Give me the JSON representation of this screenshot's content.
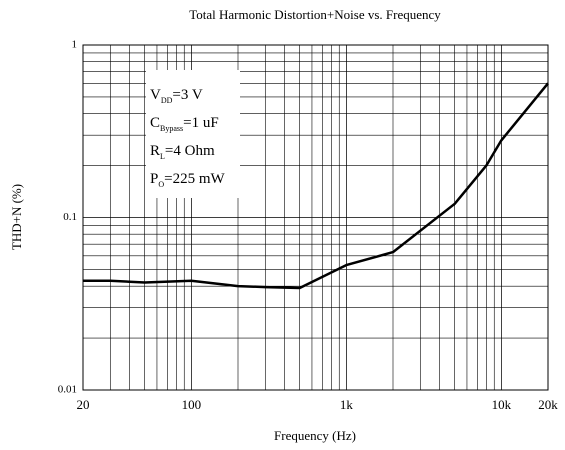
{
  "chart_data": {
    "type": "line",
    "title": "Total Harmonic Distortion+Noise vs. Frequency",
    "x_label": "Frequency (Hz)",
    "y_label": "THD+N (%)",
    "x": [
      20,
      30,
      50,
      100,
      200,
      300,
      500,
      1000,
      2000,
      5000,
      8000,
      10000,
      20000
    ],
    "series": [
      {
        "name": "THD+N",
        "color": "#000000",
        "values": [
          0.043,
          0.043,
          0.042,
          0.043,
          0.04,
          0.0395,
          0.039,
          0.053,
          0.063,
          0.12,
          0.2,
          0.28,
          0.6
        ]
      }
    ],
    "xlim": [
      20,
      20000
    ],
    "ylim": [
      0.01,
      1
    ],
    "xticks": [
      20,
      100,
      {
        "value": 1000,
        "label": "1k"
      },
      {
        "value": 10000,
        "label": "10k"
      },
      {
        "value": 20000,
        "label": "20k"
      }
    ],
    "yticks": [
      0.01,
      0.1,
      1
    ],
    "x_log": true,
    "y_log": true,
    "grid": true,
    "minor_grid": true,
    "annotations": [
      {
        "main": "V",
        "sub": "DD",
        "rest": "=3 V"
      },
      {
        "main": "C",
        "sub": "Bypass",
        "rest": "=1 uF"
      },
      {
        "main": "R",
        "sub": "L",
        "rest": "=4 Ohm"
      },
      {
        "main": "P",
        "sub": "O",
        "rest": "=225 mW"
      }
    ]
  }
}
